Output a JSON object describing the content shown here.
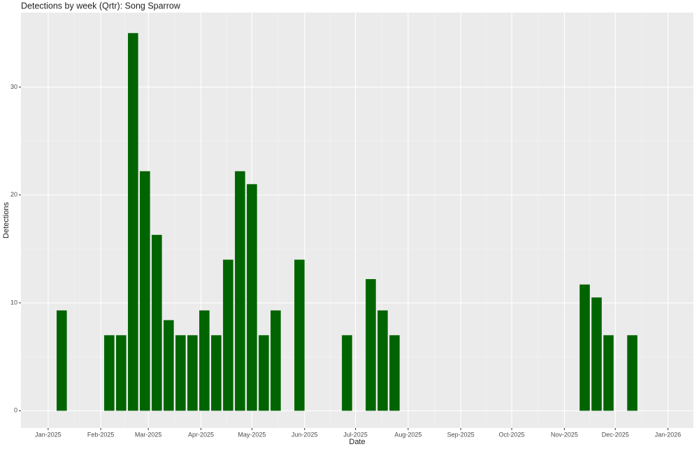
{
  "chart_data": {
    "type": "bar",
    "title": "Detections by week (Qrtr): Song Sparrow",
    "x_label": "Date",
    "y_label": "Detections",
    "x": [
      "2025-01-09",
      "2025-02-06",
      "2025-02-13",
      "2025-02-20",
      "2025-02-27",
      "2025-03-06",
      "2025-03-13",
      "2025-03-20",
      "2025-03-27",
      "2025-04-03",
      "2025-04-10",
      "2025-04-17",
      "2025-04-24",
      "2025-05-01",
      "2025-05-08",
      "2025-05-15",
      "2025-05-29",
      "2025-06-26",
      "2025-07-10",
      "2025-07-17",
      "2025-07-24",
      "2025-11-13",
      "2025-11-20",
      "2025-11-27",
      "2025-12-11"
    ],
    "values": [
      9.3,
      7,
      7,
      35,
      22.2,
      16.3,
      8.4,
      7,
      7,
      9.3,
      7,
      14,
      22.2,
      21,
      7,
      9.3,
      14,
      7,
      12.2,
      9.3,
      7,
      11.7,
      10.5,
      7,
      7
    ],
    "color": "#006400",
    "xlim": [
      "2024-12-16",
      "2026-01-16"
    ],
    "xticks": [
      {
        "value": "2025-01-01",
        "label": "Jan-2025"
      },
      {
        "value": "2025-02-01",
        "label": "Feb-2025"
      },
      {
        "value": "2025-03-01",
        "label": "Mar-2025"
      },
      {
        "value": "2025-04-01",
        "label": "Apr-2025"
      },
      {
        "value": "2025-05-01",
        "label": "May-2025"
      },
      {
        "value": "2025-06-01",
        "label": "Jun-2025"
      },
      {
        "value": "2025-07-01",
        "label": "Jul-2025"
      },
      {
        "value": "2025-08-01",
        "label": "Aug-2025"
      },
      {
        "value": "2025-09-01",
        "label": "Sep-2025"
      },
      {
        "value": "2025-10-01",
        "label": "Oct-2025"
      },
      {
        "value": "2025-11-01",
        "label": "Nov-2025"
      },
      {
        "value": "2025-12-01",
        "label": "Dec-2025"
      },
      {
        "value": "2026-01-01",
        "label": "Jan-2026"
      }
    ],
    "ylim": [
      -1.6,
      36.9
    ],
    "yticks": [
      0,
      10,
      20,
      30
    ],
    "grid": true
  }
}
